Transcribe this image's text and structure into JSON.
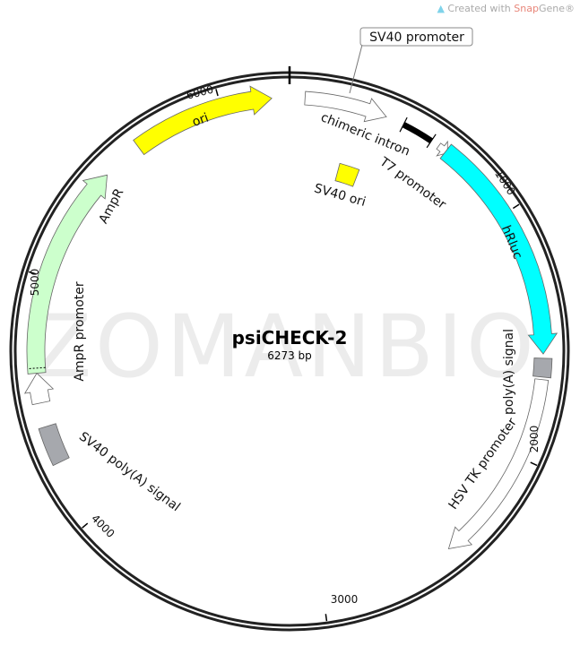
{
  "credit": {
    "prefix": "Created with ",
    "brand1": "Snap",
    "brand2": "Gene",
    "reg": "®",
    "logo_icon": "snapgene-logo-icon"
  },
  "watermark": "ZOMANBIO",
  "plasmid": {
    "name": "psiCHECK-2",
    "length_label": "6273 bp",
    "length_bp": 6273
  },
  "ticks": [
    {
      "bp": 1000,
      "label": "1000"
    },
    {
      "bp": 2000,
      "label": "2000"
    },
    {
      "bp": 3000,
      "label": "3000"
    },
    {
      "bp": 4000,
      "label": "4000"
    },
    {
      "bp": 5000,
      "label": "5000"
    },
    {
      "bp": 6000,
      "label": "6000"
    }
  ],
  "features": [
    {
      "name": "SV40 promoter",
      "start": 61,
      "end": 391,
      "direction": "forward",
      "color": "#ffffff",
      "track": "outer"
    },
    {
      "name": "chimeric intron",
      "start": 465,
      "end": 592,
      "direction": "none",
      "color": "#000000",
      "track": "outer"
    },
    {
      "name": "T7 promoter",
      "start": 627,
      "end": 671,
      "direction": "forward",
      "color": "#ffffff",
      "track": "outer"
    },
    {
      "name": "hRluc",
      "start": 662,
      "end": 1579,
      "direction": "forward",
      "color": "#00ffff",
      "track": "outer"
    },
    {
      "name": "poly(A) signal",
      "start": 1596,
      "end": 1670,
      "direction": "none",
      "color": "#a6a8ad",
      "track": "outer"
    },
    {
      "name": "HSV TK promoter",
      "start": 1680,
      "end": 2460,
      "direction": "forward",
      "color": "#ffffff",
      "track": "outer"
    },
    {
      "name": "SV40 poly(A) signal",
      "start": 4255,
      "end": 4405,
      "direction": "none",
      "color": "#a6a8ad",
      "track": "outer"
    },
    {
      "name": "AmpR promoter",
      "start": 4500,
      "end": 4618,
      "direction": "forward",
      "color": "#ffffff",
      "track": "outer"
    },
    {
      "name": "AmpR",
      "start": 4618,
      "end": 5472,
      "direction": "forward",
      "color": "#ccffcc",
      "track": "outer"
    },
    {
      "name": "ori",
      "start": 5637,
      "end": 6203,
      "direction": "forward",
      "color": "#ffff00",
      "track": "outer"
    },
    {
      "name": "SV40 ori",
      "start": 261,
      "end": 366,
      "direction": "none",
      "color": "#ffff00",
      "track": "inner"
    }
  ]
}
